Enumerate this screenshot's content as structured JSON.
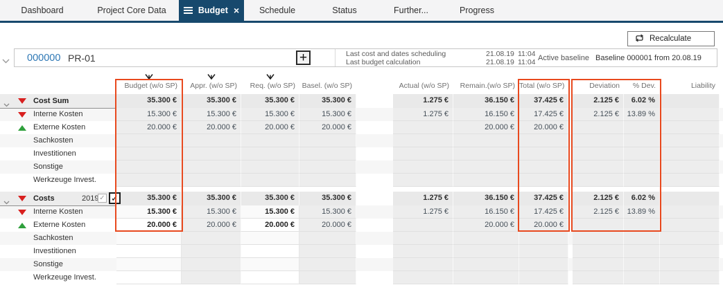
{
  "colors": {
    "accent_navy": "#17496D",
    "highlight_orange": "#E8491E",
    "negative_red": "#D8201F",
    "positive_green": "#2FA03C",
    "project_number_blue": "#2E78B5",
    "readonly_cell_gray": "#EDEDED"
  },
  "icons": {
    "hamburger": "≡",
    "close": "×",
    "plus": "+",
    "check": "✓",
    "chevron_down": "∨",
    "filter": "funnel-arrow",
    "recalculate": "circular-arrows",
    "trend_down": "red-triangle-down",
    "trend_up": "green-triangle-up"
  },
  "tabs": [
    {
      "label": "Dashboard",
      "active": false
    },
    {
      "label": "Project Core Data",
      "active": false
    },
    {
      "label": "Budget",
      "active": true
    },
    {
      "label": "Schedule",
      "active": false
    },
    {
      "label": "Status",
      "active": false
    },
    {
      "label": "Further...",
      "active": false
    },
    {
      "label": "Progress",
      "active": false
    }
  ],
  "toolbar": {
    "recalculate_label": "Recalculate"
  },
  "project": {
    "number": "000000",
    "code": "PR-01",
    "info": [
      {
        "label": "Last cost and dates scheduling",
        "date": "21.08.19",
        "time": "11:04"
      },
      {
        "label": "Last budget calculation",
        "date": "21.08.19",
        "time": "11:04"
      }
    ],
    "active_baseline_label": "Active baseline",
    "active_baseline_value": "Baseline 000001 from 20.08.19"
  },
  "table": {
    "columns": [
      {
        "label": "Budget (w/o SP)",
        "filtered": true
      },
      {
        "label": "Appr. (w/o SP)",
        "filtered": true
      },
      {
        "label": "Req. (w/o SP)",
        "filtered": true
      },
      {
        "label": "Basel. (w/o SP)",
        "filtered": false
      },
      {
        "label": "Actual (w/o SP)",
        "filtered": false
      },
      {
        "label": "Remain.(w/o SP)",
        "filtered": false
      },
      {
        "label": "Total (w/o SP)",
        "filtered": false
      },
      {
        "label": "Deviation",
        "filtered": false
      },
      {
        "label": "% Dev.",
        "filtered": false
      },
      {
        "label": "Liability",
        "filtered": false
      }
    ],
    "groups": [
      {
        "rows": [
          {
            "label": "Cost Sum",
            "header": true,
            "collapse": true,
            "trend": "down",
            "values": [
              "35.300 €",
              "35.300 €",
              "35.300 €",
              "35.300 €",
              "1.275 €",
              "36.150 €",
              "37.425 €",
              "2.125 €",
              "6.02 %",
              ""
            ]
          },
          {
            "label": "Interne Kosten",
            "trend": "down",
            "values": [
              "15.300 €",
              "15.300 €",
              "15.300 €",
              "15.300 €",
              "1.275 €",
              "16.150 €",
              "17.425 €",
              "2.125 €",
              "13.89 %",
              ""
            ]
          },
          {
            "label": "Externe Kosten",
            "trend": "up",
            "values": [
              "20.000 €",
              "20.000 €",
              "20.000 €",
              "20.000 €",
              "",
              "20.000 €",
              "20.000 €",
              "",
              "",
              ""
            ]
          },
          {
            "label": "Sachkosten",
            "values": [
              "",
              "",
              "",
              "",
              "",
              "",
              "",
              "",
              "",
              ""
            ]
          },
          {
            "label": "Investitionen",
            "values": [
              "",
              "",
              "",
              "",
              "",
              "",
              "",
              "",
              "",
              ""
            ]
          },
          {
            "label": "Sonstige",
            "values": [
              "",
              "",
              "",
              "",
              "",
              "",
              "",
              "",
              "",
              ""
            ]
          },
          {
            "label": "Werkzeuge Invest.",
            "values": [
              "",
              "",
              "",
              "",
              "",
              "",
              "",
              "",
              "",
              ""
            ]
          }
        ]
      },
      {
        "editable_columns": [
          0,
          2
        ],
        "rows": [
          {
            "label": "Costs",
            "header": true,
            "collapse": true,
            "trend": "down",
            "year": "2019",
            "checkboxes": [
              {
                "checked": true,
                "disabled": true
              },
              {
                "checked": true,
                "disabled": false
              }
            ],
            "values": [
              "35.300 €",
              "35.300 €",
              "35.300 €",
              "35.300 €",
              "1.275 €",
              "36.150 €",
              "37.425 €",
              "2.125 €",
              "6.02 %",
              ""
            ]
          },
          {
            "label": "Interne Kosten",
            "trend": "down",
            "values": [
              "15.300 €",
              "15.300 €",
              "15.300 €",
              "15.300 €",
              "1.275 €",
              "16.150 €",
              "17.425 €",
              "2.125 €",
              "13.89 %",
              ""
            ]
          },
          {
            "label": "Externe Kosten",
            "trend": "up",
            "values": [
              "20.000 €",
              "20.000 €",
              "20.000 €",
              "20.000 €",
              "",
              "20.000 €",
              "20.000 €",
              "",
              "",
              ""
            ]
          },
          {
            "label": "Sachkosten",
            "values": [
              "",
              "",
              "",
              "",
              "",
              "",
              "",
              "",
              "",
              ""
            ]
          },
          {
            "label": "Investitionen",
            "values": [
              "",
              "",
              "",
              "",
              "",
              "",
              "",
              "",
              "",
              ""
            ]
          },
          {
            "label": "Sonstige",
            "values": [
              "",
              "",
              "",
              "",
              "",
              "",
              "",
              "",
              "",
              ""
            ]
          },
          {
            "label": "Werkzeuge Invest.",
            "values": [
              "",
              "",
              "",
              "",
              "",
              "",
              "",
              "",
              "",
              ""
            ]
          }
        ]
      }
    ]
  }
}
